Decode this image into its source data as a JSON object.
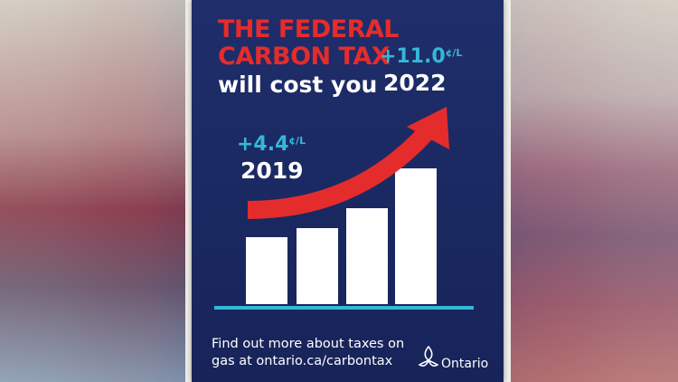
{
  "poster": {
    "headline_red_1": "THE FEDERAL",
    "headline_red_2": "CARBON TAX",
    "headline_white": "will cost you",
    "start_amount": "+4.4",
    "start_unit": "¢/L",
    "start_year": "2019",
    "end_amount": "+11.0",
    "end_unit": "¢/L",
    "end_year": "2022",
    "footer_line1": "Find out more about taxes on",
    "footer_line2": "gas at ontario.ca/carbontax",
    "logo_text": "Ontario"
  },
  "colors": {
    "navy": "#1f2e6b",
    "red": "#e52c2c",
    "cyan": "#35b8d8",
    "white": "#ffffff"
  },
  "icons": [
    "trillium-logo-icon",
    "rising-arrow-icon"
  ]
}
